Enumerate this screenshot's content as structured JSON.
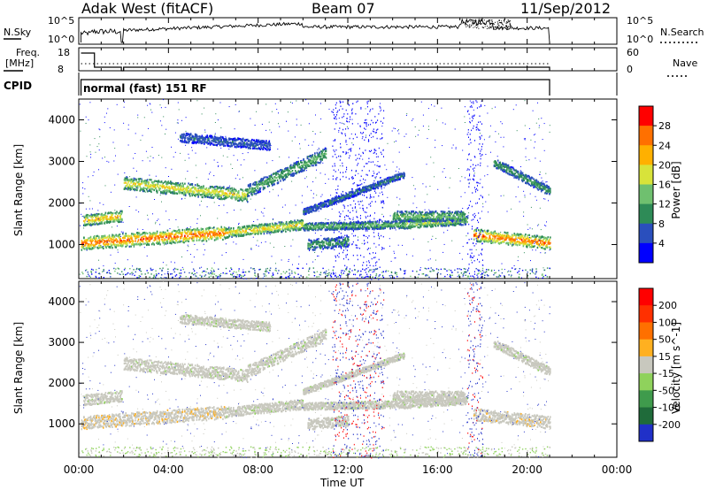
{
  "header": {
    "radar": "Adak West (fitACF)",
    "beam": "Beam 07",
    "date": "11/Sep/2012"
  },
  "top_panels": {
    "nsky_label": "N.Sky",
    "nsky_ticks": [
      "10^5",
      "10^0"
    ],
    "nsearch_label": "N.Search",
    "nsearch_ticks": [
      "10^5",
      "10^0"
    ],
    "freq_label": "Freq.",
    "freq_unit": "[MHz]",
    "freq_ticks": [
      "18",
      "8"
    ],
    "nave_label": "Nave",
    "nave_ticks": [
      "60",
      "0"
    ],
    "cpid_label": "CPID",
    "cpid_text": "normal (fast) 151 RF"
  },
  "x_axis": {
    "label": "Time UT",
    "tick_labels": [
      "00:00",
      "04:00",
      "08:00",
      "12:00",
      "16:00",
      "20:00",
      "00:00"
    ]
  },
  "chart_data": [
    {
      "type": "heatmap",
      "ylabel": "Slant Range [km]",
      "yticks": [
        1000,
        2000,
        3000,
        4000
      ],
      "ylim": [
        180,
        4500
      ],
      "xlim_hours": [
        0,
        24
      ],
      "colorbar": {
        "label": "Power [dB]",
        "tick_labels": [
          "4",
          "8",
          "12",
          "16",
          "20",
          "24",
          "28"
        ],
        "colors": [
          "#0000ff",
          "#2a4fbd",
          "#2e8b57",
          "#6fc06f",
          "#d8e33a",
          "#ffb000",
          "#ff7000",
          "#ff0000"
        ]
      },
      "bands": [
        {
          "start": 0.1,
          "end": 6.5,
          "r0": 1050,
          "r1": 1300,
          "width": 320,
          "level": 0.92
        },
        {
          "start": 6.5,
          "end": 10.0,
          "r0": 1300,
          "r1": 1500,
          "width": 240,
          "level": 0.7
        },
        {
          "start": 10.0,
          "end": 14.5,
          "r0": 1450,
          "r1": 1500,
          "width": 180,
          "level": 0.45
        },
        {
          "start": 14.5,
          "end": 17.3,
          "r0": 1500,
          "r1": 1600,
          "width": 200,
          "level": 0.55
        },
        {
          "start": 17.6,
          "end": 21.0,
          "r0": 1250,
          "r1": 1050,
          "width": 300,
          "level": 0.9
        },
        {
          "start": 0.2,
          "end": 1.9,
          "r0": 1600,
          "r1": 1700,
          "width": 260,
          "level": 0.75
        },
        {
          "start": 2.0,
          "end": 7.5,
          "r0": 2500,
          "r1": 2200,
          "width": 300,
          "level": 0.65
        },
        {
          "start": 7.5,
          "end": 11.0,
          "r0": 2300,
          "r1": 3200,
          "width": 300,
          "level": 0.4
        },
        {
          "start": 4.5,
          "end": 8.5,
          "r0": 3600,
          "r1": 3400,
          "width": 220,
          "level": 0.2
        },
        {
          "start": 10.0,
          "end": 14.5,
          "r0": 1800,
          "r1": 2700,
          "width": 150,
          "level": 0.25
        },
        {
          "start": 10.2,
          "end": 12.0,
          "r0": 1000,
          "r1": 1100,
          "width": 260,
          "level": 0.35
        },
        {
          "start": 14.0,
          "end": 17.2,
          "r0": 1700,
          "r1": 1700,
          "width": 250,
          "level": 0.45
        },
        {
          "start": 18.5,
          "end": 21.0,
          "r0": 3000,
          "r1": 2300,
          "width": 220,
          "level": 0.35
        }
      ]
    },
    {
      "type": "heatmap",
      "ylabel": "Slant Range [km]",
      "yticks": [
        1000,
        2000,
        3000,
        4000
      ],
      "ylim": [
        180,
        4500
      ],
      "xlim_hours": [
        0,
        24
      ],
      "colorbar": {
        "label": "Velocity [m s^-1]",
        "tick_labels": [
          "200",
          "100",
          "50",
          "15",
          "-15",
          "-50",
          "-100",
          "-200"
        ],
        "colors": [
          "#2030c8",
          "#1f6b3a",
          "#3f9b4c",
          "#8fd25c",
          "#c8c8be",
          "#ffb020",
          "#ff7000",
          "#ff3000",
          "#ff0000"
        ]
      }
    }
  ]
}
